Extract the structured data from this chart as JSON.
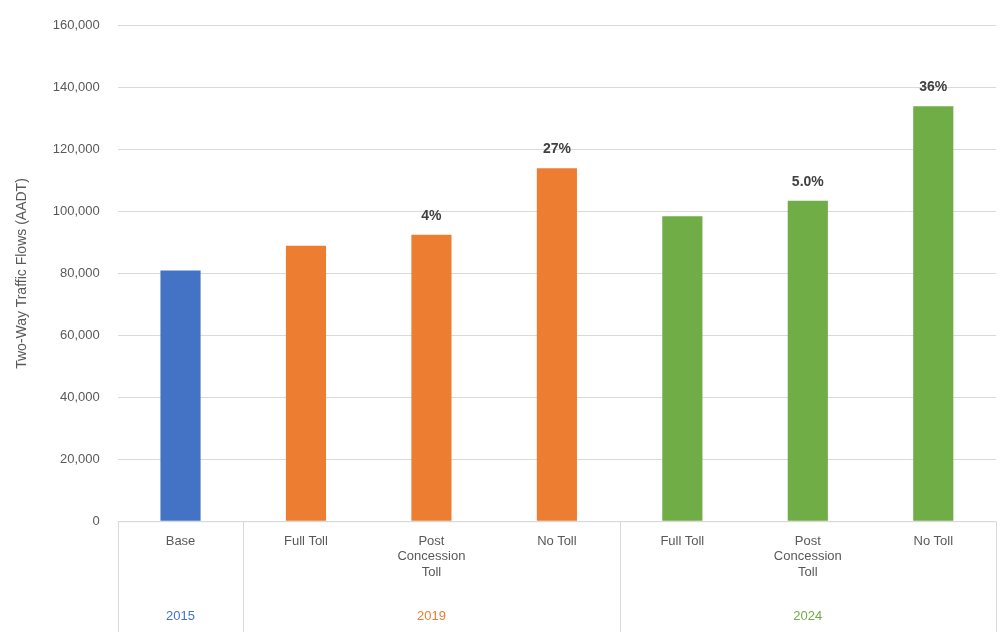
{
  "chart_data": {
    "type": "bar",
    "ylabel": "Two-Way Traffic Flows (AADT)",
    "categories": [
      "Base",
      "Full Toll",
      "Post Concession Toll",
      "No Toll",
      "Full Toll",
      "Post Concession Toll",
      "No Toll"
    ],
    "series": [
      {
        "name": "2015",
        "color": "#4472c4",
        "values": [
          81000,
          null,
          null,
          null,
          null,
          null,
          null
        ]
      },
      {
        "name": "2019",
        "color": "#ed7d31",
        "values": [
          null,
          89000,
          92500,
          114000,
          null,
          null,
          null
        ]
      },
      {
        "name": "2024",
        "color": "#70ad47",
        "values": [
          null,
          null,
          null,
          null,
          98500,
          103500,
          134000
        ]
      }
    ],
    "annotations": [
      {
        "text": "4%",
        "x": "Post Concession Toll",
        "y": 92500
      },
      {
        "text": "27%",
        "x": "No Toll",
        "y": 114000
      },
      {
        "text": "5.0%",
        "y": 103500
      },
      {
        "text": "36%",
        "y": 134000
      }
    ],
    "ylim": [
      0,
      160000
    ],
    "yticks": [
      0,
      {
        "value": 20000,
        "label": "20,000"
      },
      {
        "value": 40000,
        "label": "40,000"
      },
      {
        "value": 60000,
        "label": "60,000"
      },
      {
        "value": 80000,
        "label": "80,000"
      },
      {
        "value": 100000,
        "label": "100,000"
      },
      {
        "value": 120000,
        "label": "120,000"
      },
      {
        "value": 140000,
        "label": "140,000"
      },
      {
        "value": 160000,
        "label": "160,000"
      }
    ],
    "grid": "y",
    "legend": false
  }
}
